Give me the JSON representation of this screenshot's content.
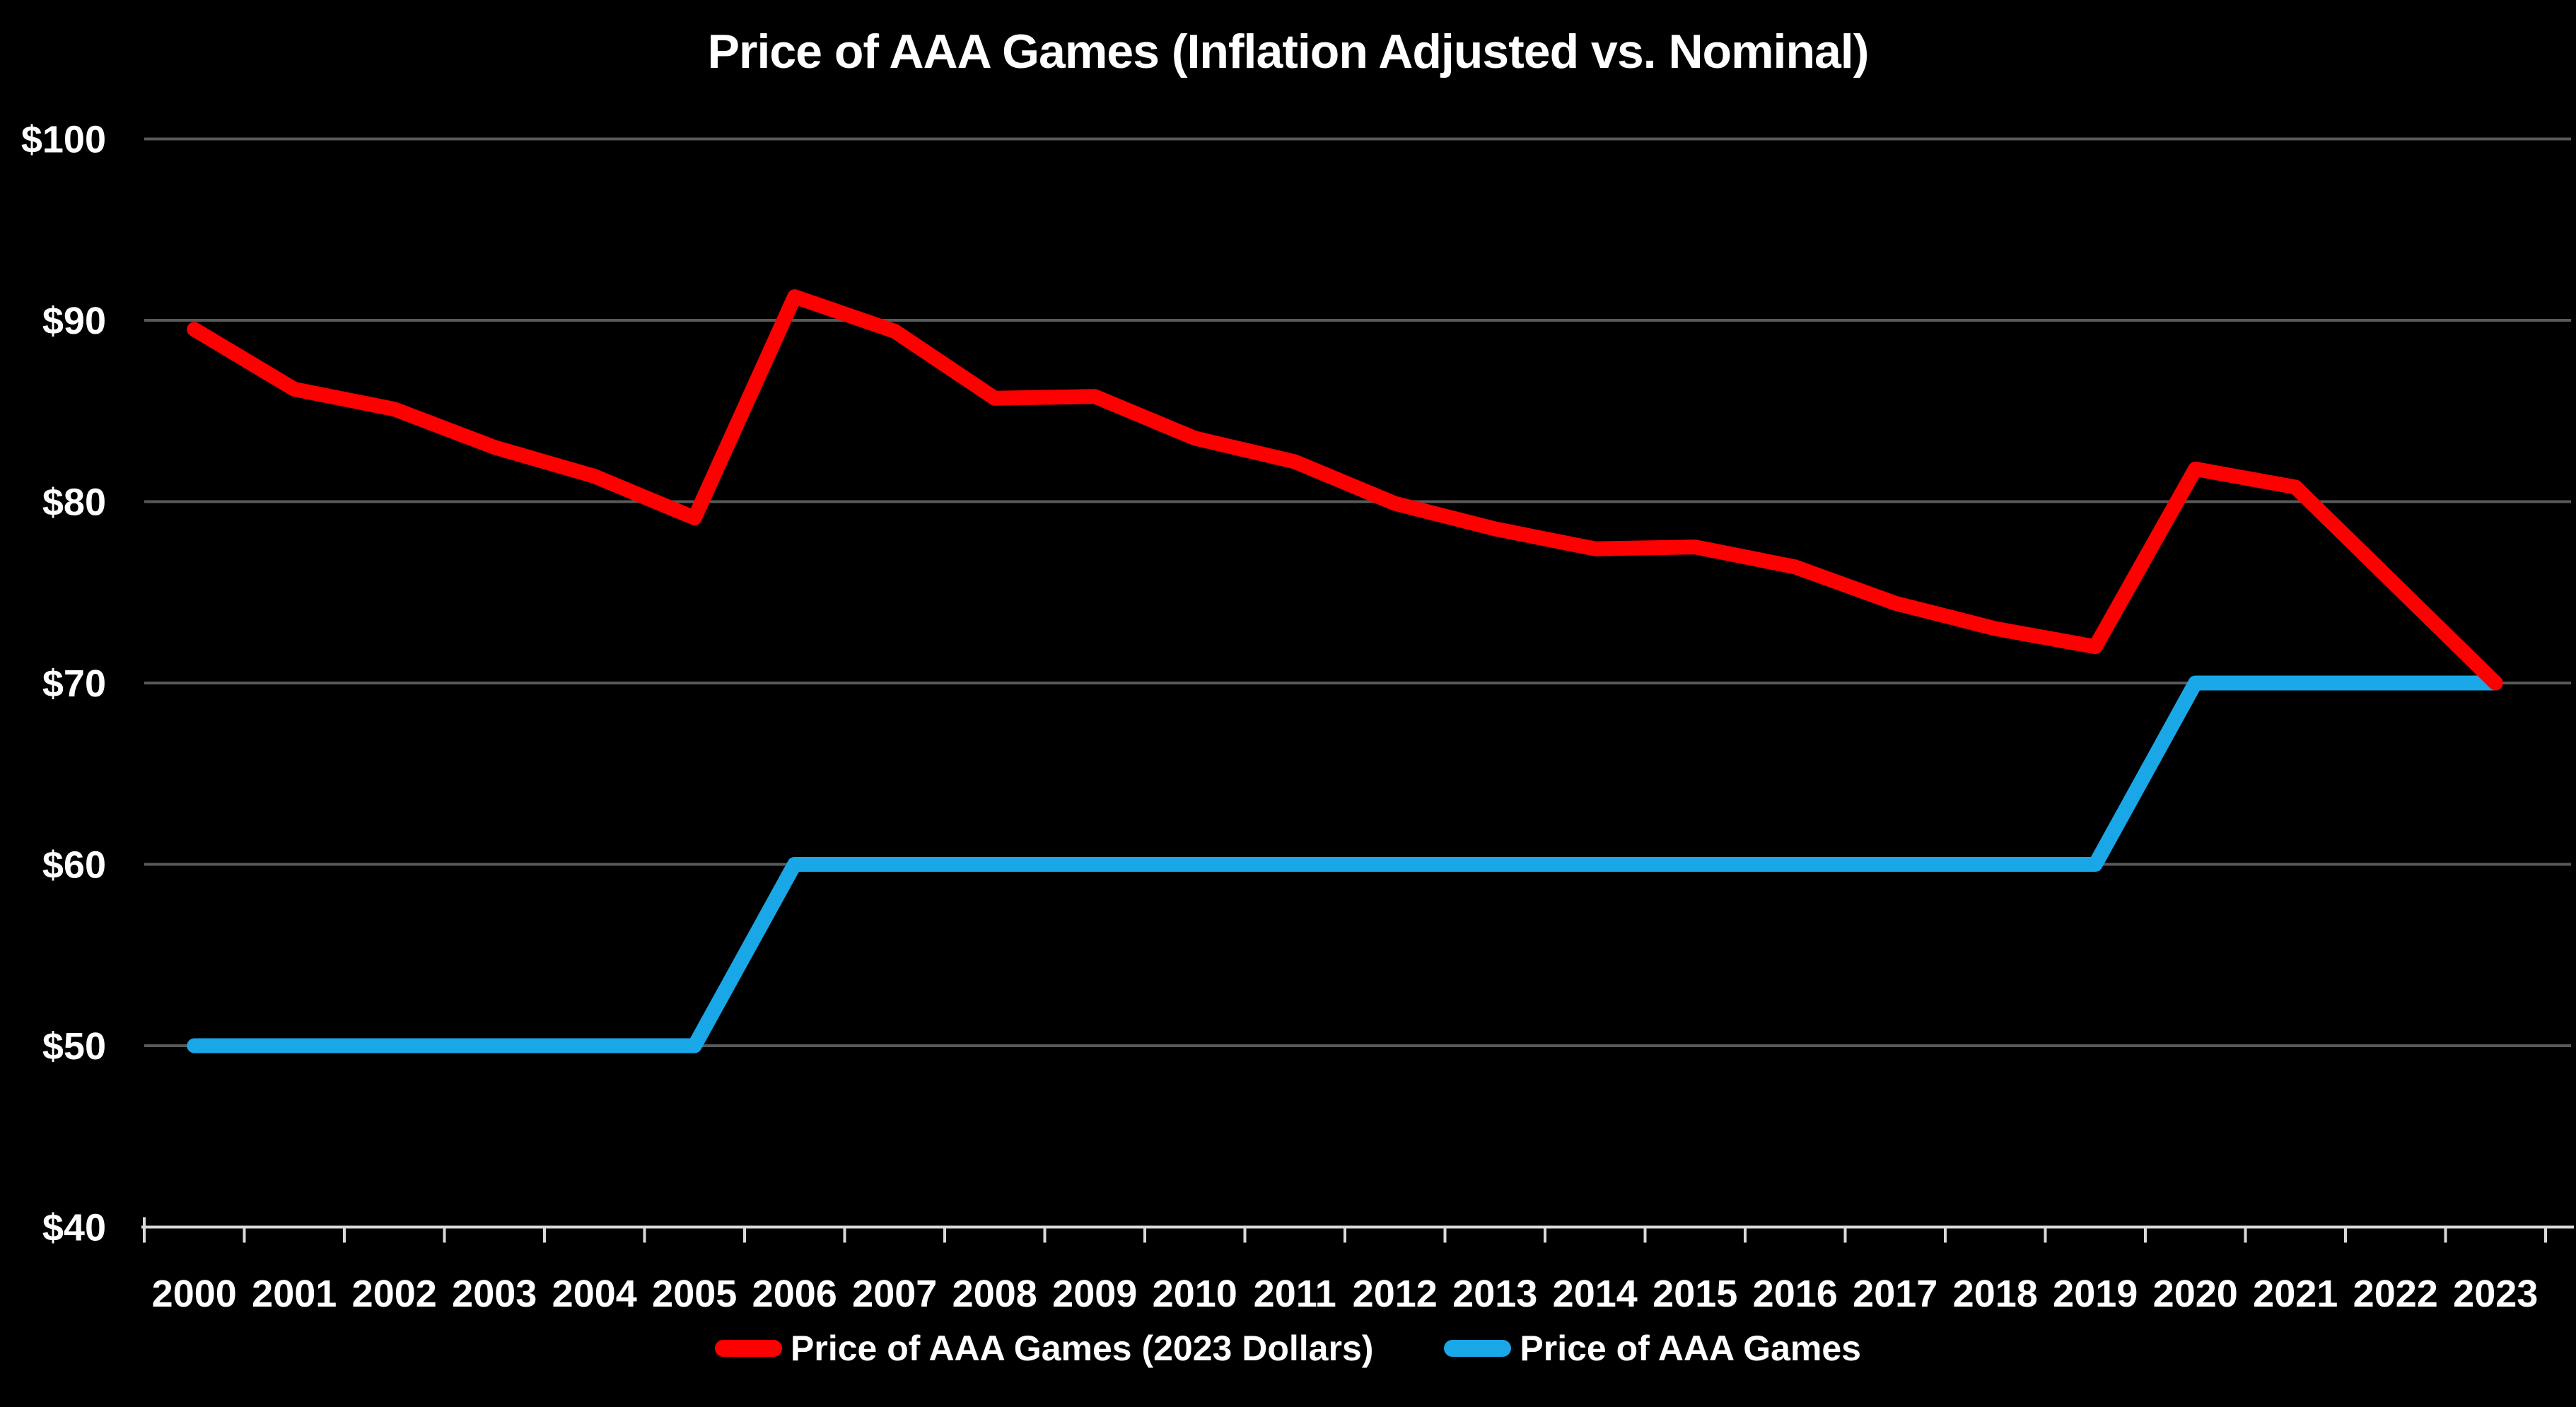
{
  "chart_data": {
    "type": "line",
    "title": "Price of AAA Games (Inflation Adjusted vs. Nominal)",
    "categories": [
      "2000",
      "2001",
      "2002",
      "2003",
      "2004",
      "2005",
      "2006",
      "2007",
      "2008",
      "2009",
      "2010",
      "2011",
      "2012",
      "2013",
      "2014",
      "2015",
      "2016",
      "2017",
      "2018",
      "2019",
      "2020",
      "2021",
      "2022",
      "2023"
    ],
    "series": [
      {
        "name": "Price of AAA Games (2023 Dollars)",
        "color": "#FF0000",
        "values": [
          89.5,
          86.2,
          85.1,
          83.0,
          81.4,
          79.1,
          91.3,
          89.4,
          85.7,
          85.8,
          83.5,
          82.2,
          79.9,
          78.5,
          77.4,
          77.5,
          76.4,
          74.4,
          73.0,
          72.0,
          81.8,
          80.8,
          75.4,
          70.0
        ]
      },
      {
        "name": "Price of AAA Games",
        "color": "#19A7E8",
        "values": [
          50,
          50,
          50,
          50,
          50,
          50,
          60,
          60,
          60,
          60,
          60,
          60,
          60,
          60,
          60,
          60,
          60,
          60,
          60,
          60,
          70,
          70,
          70,
          70
        ]
      }
    ],
    "axes": {
      "y_min": 40,
      "y_max": 100,
      "y_ticks": [
        {
          "label": "$100",
          "value": 100
        },
        {
          "label": "$90",
          "value": 90
        },
        {
          "label": "$80",
          "value": 80
        },
        {
          "label": "$70",
          "value": 70
        },
        {
          "label": "$60",
          "value": 60
        },
        {
          "label": "$50",
          "value": 50
        },
        {
          "label": "$40",
          "value": 40
        }
      ]
    },
    "grid": true,
    "legend_position": "bottom"
  },
  "style": {
    "background": "#000000",
    "grid_color": "#595959",
    "axis_color": "#D9D9D9",
    "text_color": "#FFFFFF"
  }
}
